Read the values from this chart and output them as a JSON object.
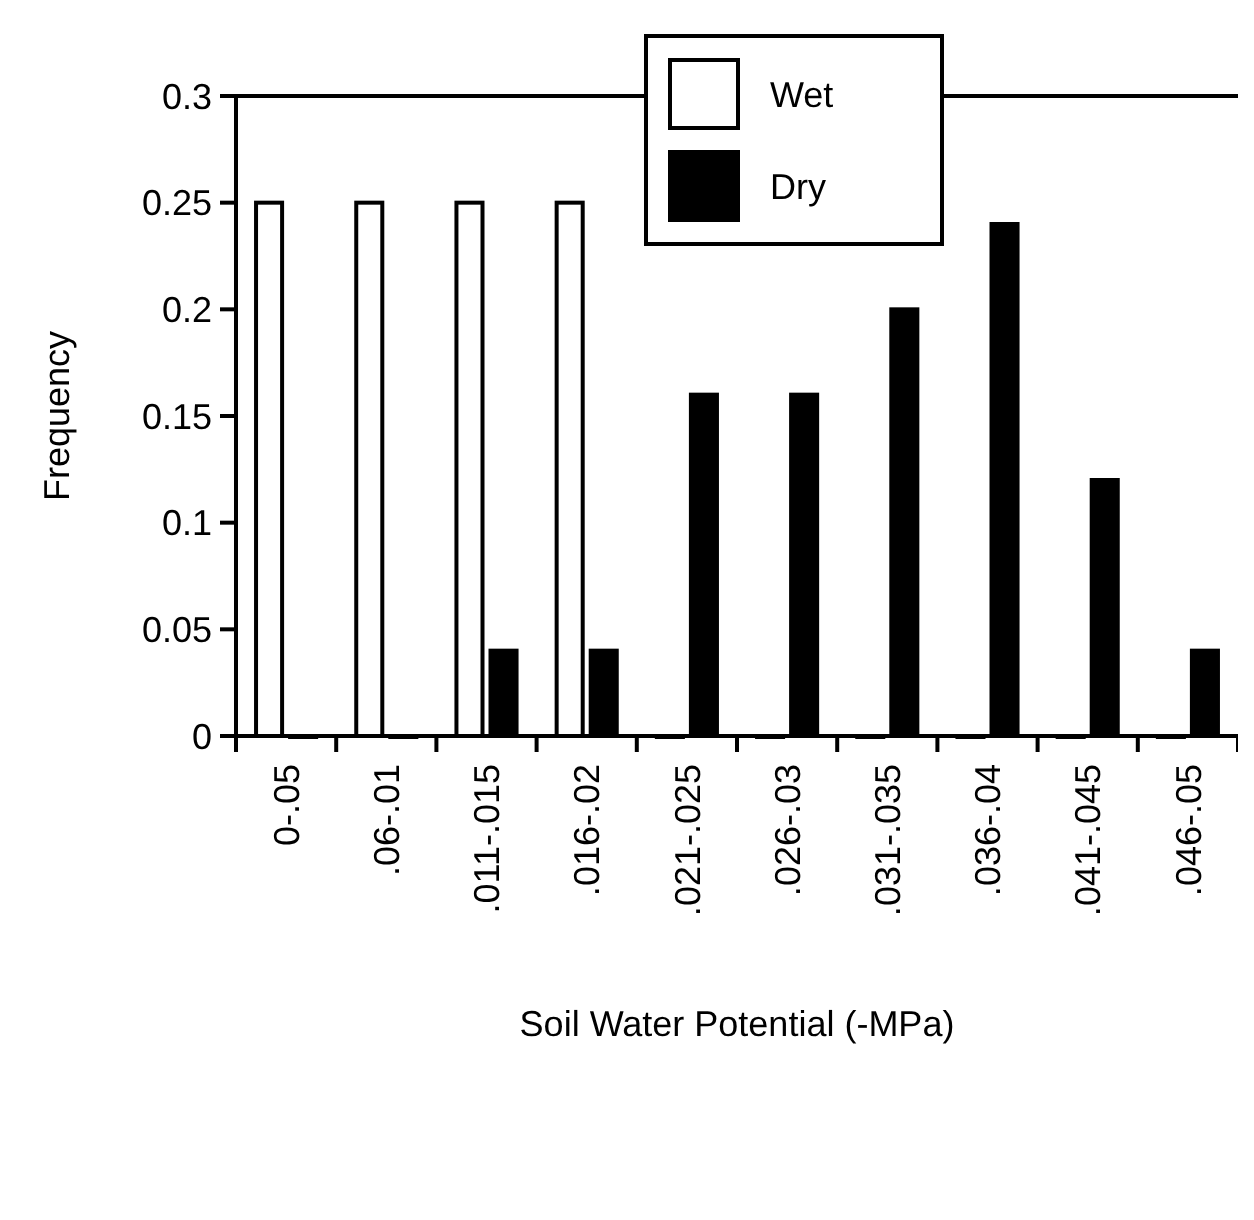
{
  "chart_data": {
    "type": "bar",
    "xlabel": "Soil Water Potential (-MPa)",
    "ylabel": "Frequency",
    "categories": [
      "0-.05",
      ".06-.01",
      ".011-.015",
      ".016-.02",
      ".021-.025",
      ".026-.03",
      ".031-.035",
      ".036-.04",
      ".041-.045",
      ".046-.05"
    ],
    "series": [
      {
        "name": "Wet",
        "color": "#ffffff",
        "values": [
          0.25,
          0.25,
          0.25,
          0.25,
          0,
          0,
          0,
          0,
          0,
          0
        ]
      },
      {
        "name": "Dry",
        "color": "#000000",
        "values": [
          0,
          0,
          0.04,
          0.04,
          0.16,
          0.16,
          0.2,
          0.24,
          0.12,
          0.04
        ]
      }
    ],
    "ylim": [
      0,
      0.3
    ],
    "yticks": [
      0,
      0.05,
      0.1,
      0.15,
      0.2,
      0.25,
      0.3
    ],
    "legend": "top",
    "grid": false
  }
}
